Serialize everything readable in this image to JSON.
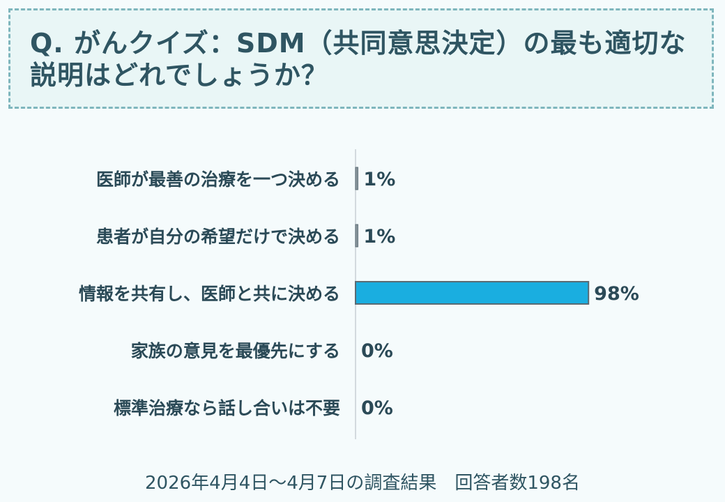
{
  "question": "Q. がんクイズ：SDM（共同意思決定）の最も適切な説明はどれでしょうか？",
  "chart_data": {
    "type": "bar",
    "orientation": "horizontal",
    "categories": [
      "医師が最善の治療を一つ決める",
      "患者が自分の希望だけで決める",
      "情報を共有し、医師と共に決める",
      "家族の意見を最優先にする",
      "標準治療なら話し合いは不要"
    ],
    "values": [
      1,
      1,
      98,
      0,
      0
    ],
    "value_labels": [
      "1%",
      "1%",
      "98%",
      "0%",
      "0%"
    ],
    "unit": "%",
    "xlim": [
      0,
      100
    ],
    "highlight_index": 2,
    "colors": {
      "bar": "#1aaee0",
      "bar_stroke": "#5a6b73",
      "minor_bar": "#8a969c",
      "axis": "#c8d0d4"
    }
  },
  "footer": "2026年4月4日～4月7日の調査結果　回答者数198名"
}
